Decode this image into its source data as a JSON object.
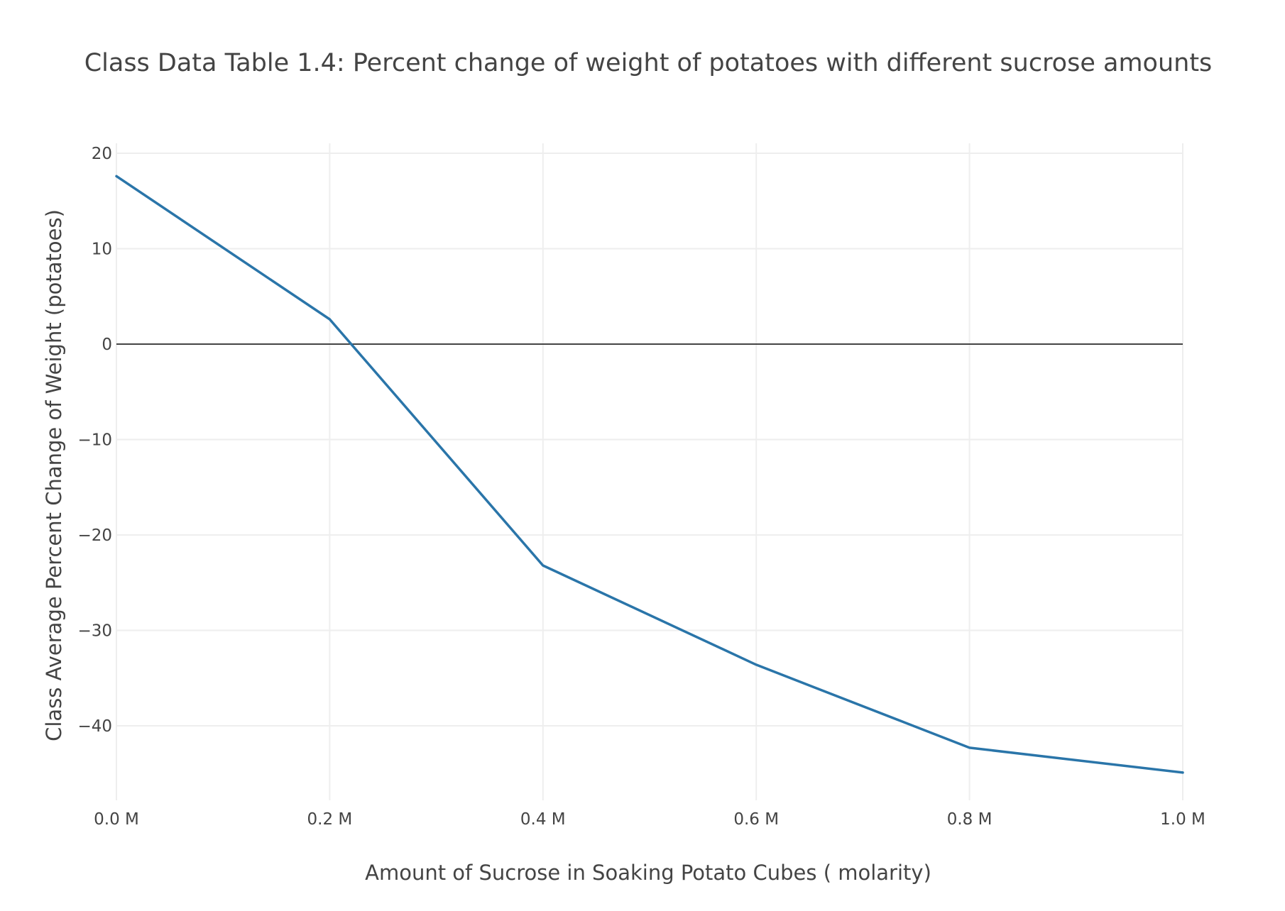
{
  "chart_data": {
    "type": "line",
    "title": "Class Data Table 1.4:  Percent change of weight of potatoes with different sucrose amounts",
    "xlabel": "Amount of Sucrose in Soaking Potato Cubes ( molarity)",
    "ylabel": "Class Average Percent Change of Weight (potatoes)",
    "x": [
      0.0,
      0.2,
      0.4,
      0.6,
      0.8,
      1.0
    ],
    "x_tick_labels": [
      "0.0 M",
      "0.2 M",
      "0.4 M",
      "0.6 M",
      "0.8 M",
      "1.0 M"
    ],
    "xlim": [
      0.0,
      1.0
    ],
    "y_ticks": [
      20,
      10,
      0,
      -10,
      -20,
      -30,
      -40
    ],
    "y_tick_labels": [
      "20",
      "10",
      "0",
      "−10",
      "−20",
      "−30",
      "−40"
    ],
    "ylim": [
      -46.5,
      21
    ],
    "series": [
      {
        "values": [
          17.6,
          2.6,
          -23.2,
          -33.6,
          -42.3,
          -44.9
        ],
        "color": "#2a75a9"
      }
    ],
    "grid": true,
    "zero_line": true,
    "legend": "none"
  }
}
